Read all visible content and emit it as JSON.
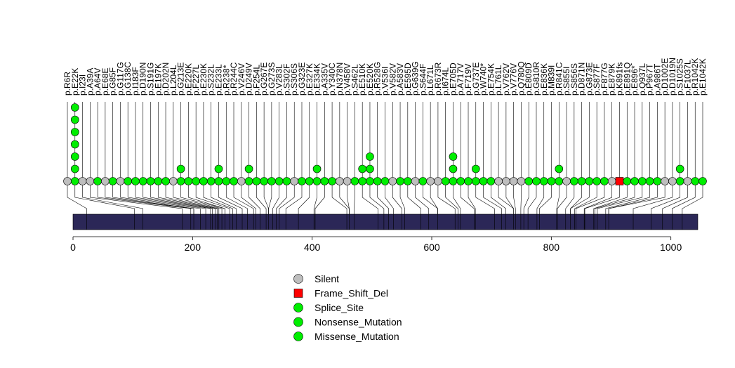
{
  "chart_data": {
    "type": "lollipop",
    "protein_length": 1045,
    "xlim": [
      0,
      1045
    ],
    "x_ticks": [
      0,
      200,
      400,
      600,
      800,
      1000
    ],
    "x_tick_labels": [
      "0",
      "200",
      "400",
      "600",
      "800",
      "1000"
    ],
    "colors": {
      "Silent": "#bebebe",
      "Frame_Shift_Del": "#ff0000",
      "Splice_Site": "#00ee00",
      "Nonsense_Mutation": "#00ee00",
      "Missense_Mutation": "#00ee00",
      "protein_bar": "#2b2757"
    },
    "legend": [
      {
        "label": "Silent",
        "color": "#bebebe",
        "shape": "circle"
      },
      {
        "label": "Frame_Shift_Del",
        "color": "#ff0000",
        "shape": "square"
      },
      {
        "label": "Splice_Site",
        "color": "#00ee00",
        "shape": "circle"
      },
      {
        "label": "Nonsense_Mutation",
        "color": "#00ee00",
        "shape": "circle"
      },
      {
        "label": "Missense_Mutation",
        "color": "#00ee00",
        "shape": "circle"
      }
    ],
    "mutations": [
      {
        "label": "p.R6R",
        "type": "Silent",
        "count": 1
      },
      {
        "label": "p.E22K",
        "type": "Missense_Mutation",
        "count": 7
      },
      {
        "label": "p.I23I",
        "type": "Silent",
        "count": 1
      },
      {
        "label": "p.A39A",
        "type": "Silent",
        "count": 1
      },
      {
        "label": "p.A64V",
        "type": "Missense_Mutation",
        "count": 1
      },
      {
        "label": "p.E68E",
        "type": "Silent",
        "count": 1
      },
      {
        "label": "p.G85F",
        "type": "Missense_Mutation",
        "count": 1
      },
      {
        "label": "p.G117G",
        "type": "Silent",
        "count": 1
      },
      {
        "label": "p.G138C",
        "type": "Missense_Mutation",
        "count": 1
      },
      {
        "label": "p.I183F",
        "type": "Missense_Mutation",
        "count": 1
      },
      {
        "label": "p.D190N",
        "type": "Missense_Mutation",
        "count": 1
      },
      {
        "label": "p.S191G",
        "type": "Missense_Mutation",
        "count": 1
      },
      {
        "label": "p.E197K",
        "type": "Missense_Mutation",
        "count": 1
      },
      {
        "label": "p.D202N",
        "type": "Missense_Mutation",
        "count": 1
      },
      {
        "label": "p.L204L",
        "type": "Silent",
        "count": 1
      },
      {
        "label": "p.G213E",
        "type": "Missense_Mutation",
        "count": 2
      },
      {
        "label": "p.E220K",
        "type": "Missense_Mutation",
        "count": 1
      },
      {
        "label": "p.F227L",
        "type": "Missense_Mutation",
        "count": 1
      },
      {
        "label": "p.E230K",
        "type": "Missense_Mutation",
        "count": 1
      },
      {
        "label": "p.S232L",
        "type": "Missense_Mutation",
        "count": 1
      },
      {
        "label": "p.E233L",
        "type": "Missense_Mutation",
        "count": 2
      },
      {
        "label": "p.R238*",
        "type": "Nonsense_Mutation",
        "count": 1
      },
      {
        "label": "p.R244C",
        "type": "Missense_Mutation",
        "count": 1
      },
      {
        "label": "p.V246V",
        "type": "Silent",
        "count": 1
      },
      {
        "label": "p.D249V",
        "type": "Missense_Mutation",
        "count": 2
      },
      {
        "label": "p.F254L",
        "type": "Missense_Mutation",
        "count": 1
      },
      {
        "label": "p.G267E",
        "type": "Missense_Mutation",
        "count": 1
      },
      {
        "label": "p.G273S",
        "type": "Missense_Mutation",
        "count": 1
      },
      {
        "label": "p.V283L",
        "type": "Missense_Mutation",
        "count": 1
      },
      {
        "label": "p.S302F",
        "type": "Missense_Mutation",
        "count": 1
      },
      {
        "label": "p.S306S",
        "type": "Silent",
        "count": 1
      },
      {
        "label": "p.G323E",
        "type": "Missense_Mutation",
        "count": 1
      },
      {
        "label": "p.E327K",
        "type": "Missense_Mutation",
        "count": 1
      },
      {
        "label": "p.E334K",
        "type": "Missense_Mutation",
        "count": 2
      },
      {
        "label": "p.A335V",
        "type": "Missense_Mutation",
        "count": 1
      },
      {
        "label": "p.Y340C",
        "type": "Missense_Mutation",
        "count": 1
      },
      {
        "label": "p.N378N",
        "type": "Silent",
        "count": 1
      },
      {
        "label": "p.V458V",
        "type": "Silent",
        "count": 1
      },
      {
        "label": "p.S462L",
        "type": "Missense_Mutation",
        "count": 1
      },
      {
        "label": "p.E510K",
        "type": "Missense_Mutation",
        "count": 2
      },
      {
        "label": "p.E520K",
        "type": "Missense_Mutation",
        "count": 3
      },
      {
        "label": "p.R528G",
        "type": "Missense_Mutation",
        "count": 1
      },
      {
        "label": "p.V536I",
        "type": "Missense_Mutation",
        "count": 1
      },
      {
        "label": "p.V582V",
        "type": "Silent",
        "count": 1
      },
      {
        "label": "p.A583V",
        "type": "Missense_Mutation",
        "count": 1
      },
      {
        "label": "p.E595D",
        "type": "Missense_Mutation",
        "count": 1
      },
      {
        "label": "p.G639G",
        "type": "Silent",
        "count": 1
      },
      {
        "label": "p.S644F",
        "type": "Missense_Mutation",
        "count": 1
      },
      {
        "label": "p.L671L",
        "type": "Silent",
        "count": 1
      },
      {
        "label": "p.R673R",
        "type": "Silent",
        "count": 1
      },
      {
        "label": "p.I674L",
        "type": "Missense_Mutation",
        "count": 1
      },
      {
        "label": "p.E705D",
        "type": "Missense_Mutation",
        "count": 3
      },
      {
        "label": "p.A717V",
        "type": "Missense_Mutation",
        "count": 1
      },
      {
        "label": "p.F719V",
        "type": "Missense_Mutation",
        "count": 1
      },
      {
        "label": "p.G737E",
        "type": "Missense_Mutation",
        "count": 2
      },
      {
        "label": "p.W740*",
        "type": "Nonsense_Mutation",
        "count": 1
      },
      {
        "label": "p.E754K",
        "type": "Missense_Mutation",
        "count": 1
      },
      {
        "label": "p.L761L",
        "type": "Silent",
        "count": 1
      },
      {
        "label": "p.V762V",
        "type": "Silent",
        "count": 1
      },
      {
        "label": "p.V776V",
        "type": "Silent",
        "count": 1
      },
      {
        "label": "p.Q780Q",
        "type": "Silent",
        "count": 1
      },
      {
        "label": "p.E809D",
        "type": "Missense_Mutation",
        "count": 1
      },
      {
        "label": "p.G810R",
        "type": "Missense_Mutation",
        "count": 1
      },
      {
        "label": "p.E836K",
        "type": "Missense_Mutation",
        "count": 1
      },
      {
        "label": "p.M839I",
        "type": "Missense_Mutation",
        "count": 1
      },
      {
        "label": "p.R841C",
        "type": "Missense_Mutation",
        "count": 2
      },
      {
        "label": "p.S855I",
        "type": "Silent",
        "count": 1
      },
      {
        "label": "p.S856S",
        "type": "Missense_Mutation",
        "count": 1
      },
      {
        "label": "p.D871N",
        "type": "Missense_Mutation",
        "count": 1
      },
      {
        "label": "p.G873E",
        "type": "Missense_Mutation",
        "count": 1
      },
      {
        "label": "p.S877F",
        "type": "Missense_Mutation",
        "count": 1
      },
      {
        "label": "p.F877G",
        "type": "Missense_Mutation",
        "count": 1
      },
      {
        "label": "p.E879K",
        "type": "Silent",
        "count": 1
      },
      {
        "label": "p.K891fs",
        "type": "Frame_Shift_Del",
        "count": 1
      },
      {
        "label": "p.E891Q",
        "type": "Missense_Mutation",
        "count": 1
      },
      {
        "label": "p.E896*",
        "type": "Missense_Mutation",
        "count": 1
      },
      {
        "label": "p.Q937L",
        "type": "Missense_Mutation",
        "count": 1
      },
      {
        "label": "p.P967T",
        "type": "Missense_Mutation",
        "count": 1
      },
      {
        "label": "p.A986T",
        "type": "Missense_Mutation",
        "count": 1
      },
      {
        "label": "p.D1002E",
        "type": "Silent",
        "count": 1
      },
      {
        "label": "p.D1019N",
        "type": "Silent",
        "count": 1
      },
      {
        "label": "p.S1025S",
        "type": "Missense_Mutation",
        "count": 2
      },
      {
        "label": "p.F1037L",
        "type": "Silent",
        "count": 1
      },
      {
        "label": "p.R1042K",
        "type": "Missense_Mutation",
        "count": 1
      },
      {
        "label": "p.E1042K",
        "type": "Missense_Mutation",
        "count": 1
      }
    ],
    "protein_domain_markers": [
      23,
      103,
      117,
      183,
      197,
      202,
      213,
      222,
      230,
      233,
      238,
      241,
      244,
      249,
      254,
      262,
      267,
      273,
      283,
      292,
      302,
      306,
      313,
      323,
      327,
      334,
      340,
      345,
      356,
      377,
      403,
      405,
      458,
      462,
      470,
      510,
      520,
      528,
      536,
      550,
      555,
      582,
      595,
      610,
      639,
      644,
      648,
      671,
      673,
      705,
      717,
      724,
      737,
      740,
      749,
      754,
      761,
      776,
      780,
      809,
      810,
      824,
      832,
      839,
      841,
      855,
      856,
      871,
      873,
      877,
      891,
      896,
      937,
      967,
      986,
      1002,
      1019
    ]
  }
}
